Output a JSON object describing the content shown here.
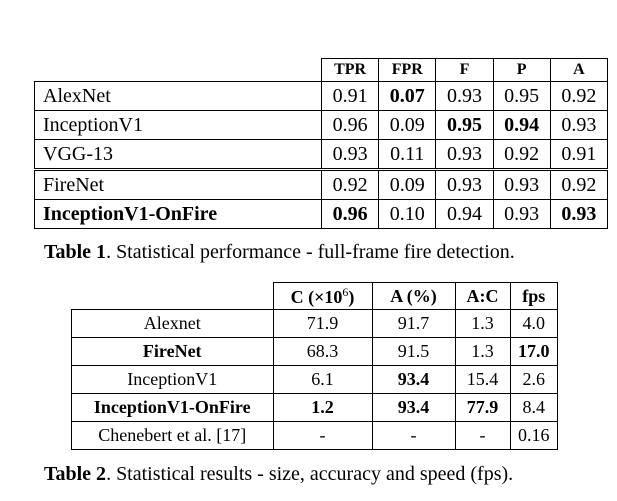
{
  "table1": {
    "headers": [
      "TPR",
      "FPR",
      "F",
      "P",
      "A"
    ],
    "rows": [
      {
        "name": "AlexNet",
        "values": [
          "0.91",
          "0.07",
          "0.93",
          "0.95",
          "0.92"
        ]
      },
      {
        "name": "InceptionV1",
        "values": [
          "0.96",
          "0.09",
          "0.95",
          "0.94",
          "0.93"
        ]
      },
      {
        "name": "VGG-13",
        "values": [
          "0.93",
          "0.11",
          "0.93",
          "0.92",
          "0.91"
        ]
      },
      {
        "name": "FireNet",
        "values": [
          "0.92",
          "0.09",
          "0.93",
          "0.93",
          "0.92"
        ]
      },
      {
        "name": "InceptionV1-OnFire",
        "values": [
          "0.96",
          "0.10",
          "0.94",
          "0.93",
          "0.93"
        ]
      }
    ],
    "caption_label": "Table 1",
    "caption_text": ". Statistical performance - full-frame fire detection."
  },
  "table2": {
    "headers": [
      "C (×10",
      "6",
      ")",
      "A (%)",
      "A:C",
      "fps"
    ],
    "rows": [
      {
        "name": "Alexnet",
        "values": [
          "71.9",
          "91.7",
          "1.3",
          "4.0"
        ]
      },
      {
        "name": "FireNet",
        "values": [
          "68.3",
          "91.5",
          "1.3",
          "17.0"
        ]
      },
      {
        "name": "InceptionV1",
        "values": [
          "6.1",
          "93.4",
          "15.4",
          "2.6"
        ]
      },
      {
        "name": "InceptionV1-OnFire",
        "values": [
          "1.2",
          "93.4",
          "77.9",
          "8.4"
        ]
      },
      {
        "name": "Chenebert et al. [17]",
        "values": [
          "-",
          "-",
          "-",
          "0.16"
        ]
      }
    ],
    "caption_label": "Table 2",
    "caption_text": ". Statistical results - size, accuracy and speed (fps)."
  }
}
